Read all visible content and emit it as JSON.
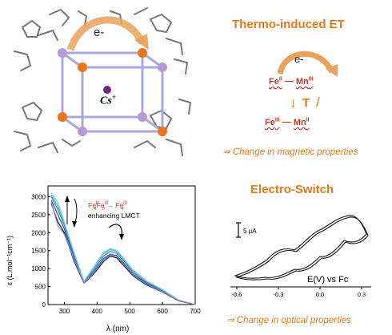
{
  "structure": {
    "electron_label": "e-",
    "cation_label": "Cs",
    "cation_charge": "+"
  },
  "thermo": {
    "title": "Thermo-induced ET",
    "electron_label": "e-",
    "top_left": "Fe",
    "top_left_ox": "II",
    "top_right": "Mn",
    "top_right_ox": "III",
    "trigger": "T",
    "trigger_mark": "/",
    "bottom_left": "Fe",
    "bottom_left_ox": "III",
    "bottom_right": "Mn",
    "bottom_right_ox": "II",
    "consequence": "⇒ Change in magnetic properties"
  },
  "electro": {
    "title": "Electro-Switch",
    "consequence": "⇒ Change in optical properties"
  },
  "colors": {
    "accent": "#e07a1f",
    "fe_label": "#c0392b",
    "mn_atom": "#b59ad8",
    "fe_atom": "#e8761a",
    "cs_atom": "#6a2a8a"
  },
  "chart_data": [
    {
      "type": "line",
      "title": "",
      "xlabel": "λ (nm)",
      "ylabel": "ε (L.mol⁻¹cm⁻¹)",
      "xlim": [
        250,
        700
      ],
      "ylim": [
        0,
        3300
      ],
      "x_ticks": [
        300,
        400,
        500,
        600,
        700
      ],
      "y_ticks": [
        0,
        500,
        1000,
        1500,
        2000,
        2500,
        3000
      ],
      "annotation_fe_left": "Fe",
      "annotation_fe_left_sup": "II",
      "annotation_fe_left_sub": "4",
      "annotation_fe_mid": "Fe",
      "annotation_fe_mid_sup": "III",
      "annotation_fe_mid_sub": "0",
      "annotation_fe_right": "Fe",
      "annotation_fe_right_sup": "III",
      "annotation_fe_right_sub": "4",
      "annotation_text": "enhancing LMCT",
      "x": [
        260,
        280,
        300,
        330,
        360,
        390,
        420,
        440,
        460,
        480,
        510,
        550,
        600,
        650,
        700
      ],
      "series": [
        {
          "color": "#0d1b3a",
          "values": [
            2800,
            2300,
            2000,
            1200,
            600,
            850,
            1200,
            1350,
            1300,
            1100,
            800,
            550,
            350,
            100,
            0
          ]
        },
        {
          "color": "#2b4a85",
          "values": [
            2900,
            2500,
            2100,
            1300,
            620,
            900,
            1280,
            1400,
            1360,
            1170,
            850,
            590,
            370,
            110,
            0
          ]
        },
        {
          "color": "#1f8bb0",
          "values": [
            3000,
            2650,
            2200,
            1350,
            630,
            950,
            1350,
            1480,
            1430,
            1230,
            900,
            620,
            390,
            120,
            0
          ]
        },
        {
          "color": "#3fb0cf",
          "values": [
            3050,
            2750,
            2250,
            1400,
            640,
            1000,
            1420,
            1530,
            1480,
            1280,
            940,
            650,
            410,
            125,
            0
          ]
        },
        {
          "color": "#8fcbe3",
          "values": [
            3100,
            2850,
            2300,
            1450,
            650,
            1050,
            1460,
            1560,
            1510,
            1310,
            960,
            670,
            420,
            130,
            0
          ]
        },
        {
          "color": "#9a7fc7",
          "values": [
            2850,
            2200,
            1950,
            1250,
            610,
            880,
            1250,
            1380,
            1340,
            1140,
            830,
            570,
            360,
            105,
            0
          ]
        }
      ]
    },
    {
      "type": "line",
      "title": "",
      "xlabel": "E(V) vs Fc",
      "ylabel": "",
      "scale_label": "5 µA",
      "xlim": [
        -0.6,
        0.3
      ],
      "x_ticks": [
        -0.6,
        -0.3,
        0.0,
        0.3
      ],
      "x_tick_labels": [
        "-0.6",
        "-0.3",
        "0.0",
        "0.3"
      ]
    }
  ]
}
